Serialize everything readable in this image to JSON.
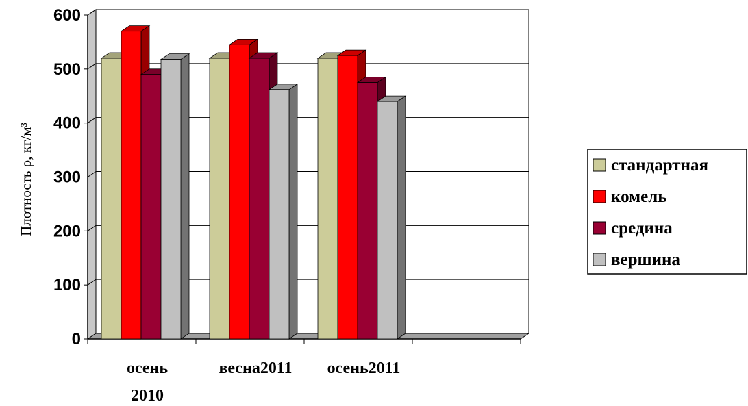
{
  "chart_data": {
    "type": "bar",
    "ylabel": "Плотность ρ, кг/м³",
    "ylim": [
      0,
      600
    ],
    "yticks": [
      "0",
      "100",
      "200",
      "300",
      "400",
      "500",
      "600"
    ],
    "categories": [
      [
        "осень",
        "2010"
      ],
      [
        "весна2011"
      ],
      [
        "осень2011"
      ],
      [
        ""
      ]
    ],
    "series": [
      {
        "name": "стандартная",
        "values": [
          520,
          520,
          520,
          null
        ],
        "color": "#cccc99"
      },
      {
        "name": "комель",
        "values": [
          570,
          545,
          525,
          null
        ],
        "color": "#ff0000"
      },
      {
        "name": "средина",
        "values": [
          490,
          520,
          475,
          null
        ],
        "color": "#990033"
      },
      {
        "name": "вершина",
        "values": [
          518,
          462,
          440,
          null
        ],
        "color": "#c0c0c0"
      }
    ],
    "grid": true,
    "legend_position": "right",
    "style": "3d-clustered-column"
  }
}
